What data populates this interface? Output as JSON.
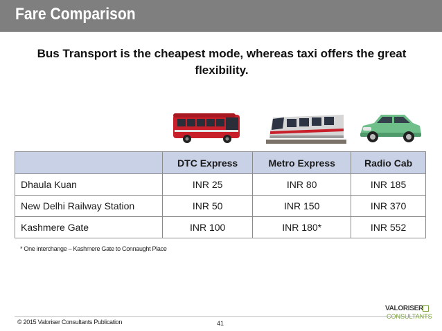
{
  "slide": {
    "title": "Fare Comparison",
    "subtitle": "Bus Transport is the cheapest mode, whereas taxi offers the great flexibility.",
    "page_number": "41"
  },
  "table": {
    "headers": [
      "",
      "DTC Express",
      "Metro Express",
      "Radio Cab"
    ],
    "rows": [
      [
        "Dhaula Kuan",
        "INR 25",
        "INR 80",
        "INR 185"
      ],
      [
        "New Delhi Railway Station",
        "INR 50",
        "INR 150",
        "INR 370"
      ],
      [
        "Kashmere Gate",
        "INR 100",
        "INR 180*",
        "INR 552"
      ]
    ],
    "header_color": "#c9d1e6"
  },
  "footnote": "* One interchange – Kashmere Gate to Connaught Place",
  "footer": {
    "copyright": "© 2015 Valoriser Consultants Publication",
    "logo_top": "VALORISER",
    "logo_bottom": "CONSULTANTS"
  },
  "images": {
    "bus": "bus-icon",
    "metro": "metro-train-icon",
    "cab": "taxi-car-icon"
  },
  "colors": {
    "title_bar": "#7f7f7f",
    "bus": "#c8202a",
    "cab": "#6fbf8a",
    "logo_accent": "#7aa23a"
  }
}
